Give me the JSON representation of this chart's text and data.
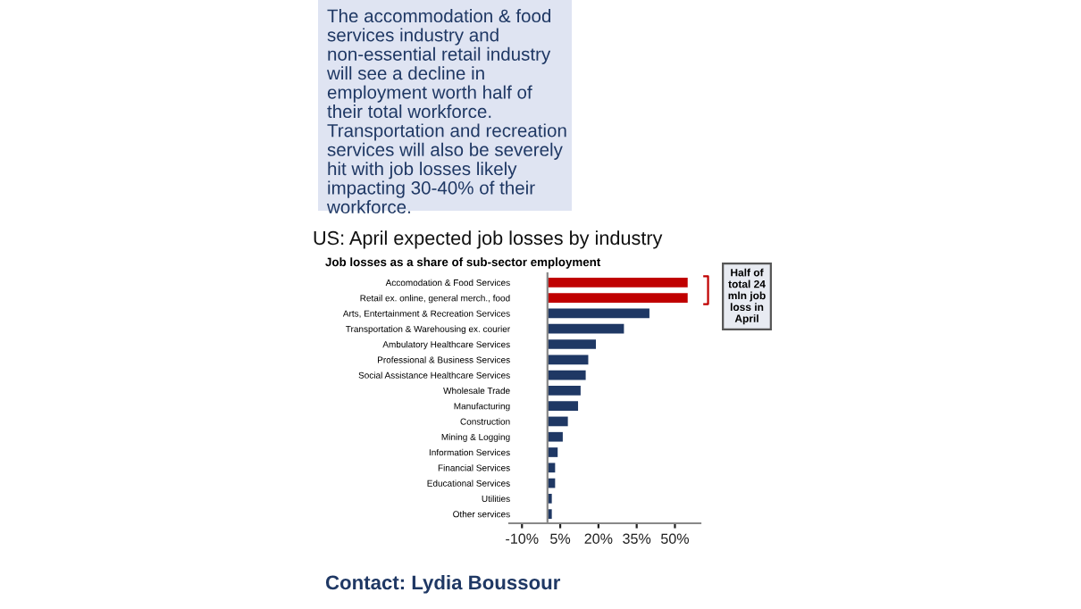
{
  "chart_data": {
    "type": "bar",
    "orientation": "horizontal",
    "title": "US: April expected job losses by industry",
    "subtitle": "Job losses as a share of sub-sector employment",
    "categories": [
      "Accomodation & Food Services",
      "Retail ex. online, general merch., food",
      "Arts, Entertainment & Recreation Services",
      "Transportation & Warehousing ex. courier",
      "Ambulatory Healthcare Services",
      "Professional & Business Services",
      "Social Assistance Healthcare Services",
      "Wholesale Trade",
      "Manufacturing",
      "Construction",
      "Mining & Logging",
      "Information Services",
      "Financial Services",
      "Educational Services",
      "Utilities",
      "Other services"
    ],
    "values": [
      55,
      55,
      40,
      30,
      19,
      16,
      15,
      13,
      12,
      8,
      6,
      4,
      3,
      3,
      1.7,
      1.7
    ],
    "colors": [
      "#c00000",
      "#c00000",
      "#1f3864",
      "#1f3864",
      "#1f3864",
      "#1f3864",
      "#1f3864",
      "#1f3864",
      "#1f3864",
      "#1f3864",
      "#1f3864",
      "#1f3864",
      "#1f3864",
      "#1f3864",
      "#1f3864",
      "#1f3864"
    ],
    "xlim": [
      -15,
      60
    ],
    "xticks": [
      {
        "value": -10,
        "label": "-10%"
      },
      {
        "value": 5,
        "label": "5%"
      },
      {
        "value": 20,
        "label": "20%"
      },
      {
        "value": 35,
        "label": "35%"
      },
      {
        "value": 50,
        "label": "50%"
      }
    ],
    "grid": false,
    "legend": false,
    "annotations": [
      "The accommodation & food services industry and non-essential retail industry will see a decline in employment worth half of their total workforce. Transportation and recreation services will also be severely hit with job losses likely impacting 30-40% of their workforce.",
      "Half of total 24 mln job loss in April",
      "Contact: Lydia Boussour"
    ]
  }
}
